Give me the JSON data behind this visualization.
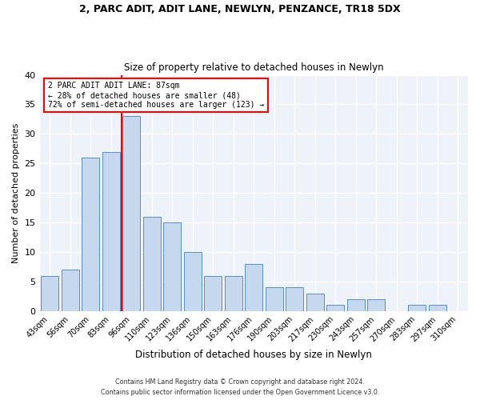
{
  "title1": "2, PARC ADIT, ADIT LANE, NEWLYN, PENZANCE, TR18 5DX",
  "title2": "Size of property relative to detached houses in Newlyn",
  "xlabel": "Distribution of detached houses by size in Newlyn",
  "ylabel": "Number of detached properties",
  "bar_labels": [
    "43sqm",
    "56sqm",
    "70sqm",
    "83sqm",
    "96sqm",
    "110sqm",
    "123sqm",
    "136sqm",
    "150sqm",
    "163sqm",
    "176sqm",
    "190sqm",
    "203sqm",
    "217sqm",
    "230sqm",
    "243sqm",
    "257sqm",
    "270sqm",
    "283sqm",
    "297sqm",
    "310sqm"
  ],
  "bar_values": [
    6,
    7,
    26,
    27,
    33,
    16,
    15,
    10,
    6,
    6,
    8,
    4,
    4,
    3,
    1,
    2,
    2,
    0,
    1,
    1,
    0
  ],
  "bar_color": "#c5d8ed",
  "bar_edge_color": "#5a8fc2",
  "property_line_label": "2 PARC ADIT ADIT LANE: 87sqm",
  "annotation_line1": "← 28% of detached houses are smaller (48)",
  "annotation_line2": "72% of semi-detached houses are larger (123) →",
  "annotation_box_color": "white",
  "annotation_box_edge_color": "red",
  "vline_color": "red",
  "vline_x_index": 3.5,
  "footer1": "Contains HM Land Registry data © Crown copyright and database right 2024.",
  "footer2": "Contains public sector information licensed under the Open Government Licence v3.0.",
  "ylim": [
    0,
    40
  ],
  "yticks": [
    0,
    5,
    10,
    15,
    20,
    25,
    30,
    35,
    40
  ],
  "bg_color": "#eef2f9",
  "grid_color": "white"
}
